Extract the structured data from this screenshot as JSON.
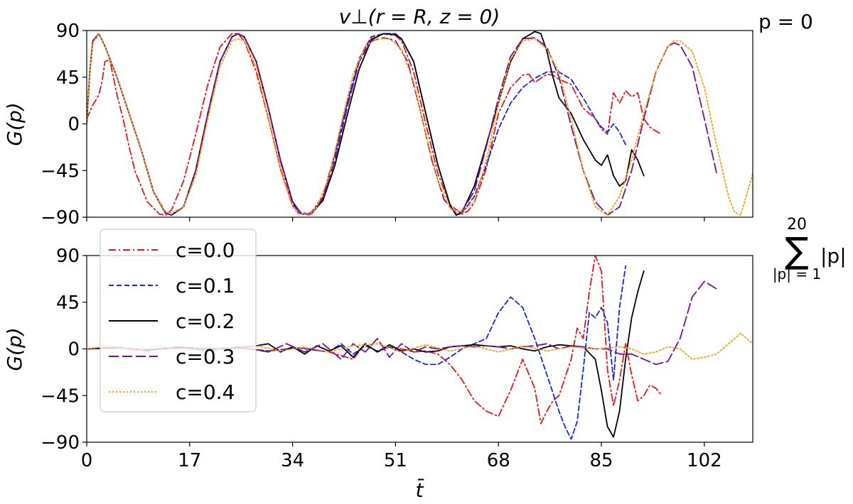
{
  "title": "v⊥(r = R, z = 0)",
  "chart_data": [
    {
      "type": "line",
      "panel": "top",
      "side_label": "p = 0",
      "ylabel": "G(p)",
      "xlabel": "",
      "xlim": [
        0,
        110
      ],
      "ylim": [
        -90,
        90
      ],
      "xticks": [
        0,
        17,
        34,
        51,
        68,
        85,
        102
      ],
      "yticks": [
        -90,
        -45,
        0,
        45,
        90
      ],
      "ytick_labels": [
        "−90",
        "−45",
        "0",
        "45",
        "90"
      ],
      "series": [
        {
          "name": "c=0.0",
          "color": "#e8161b",
          "dash": "dashdot",
          "x": [
            0,
            1,
            2,
            2.5,
            3,
            3.8,
            5,
            6,
            7,
            8,
            10,
            12,
            13,
            14,
            16,
            18,
            20,
            22,
            24,
            25,
            26,
            28,
            30,
            32,
            34,
            35.5,
            37,
            39,
            41,
            43,
            45,
            47,
            49,
            51,
            52,
            54,
            56,
            58,
            60,
            62,
            63,
            64,
            66,
            68,
            70,
            72,
            73,
            74,
            76,
            77,
            78,
            80,
            82,
            84,
            85,
            86,
            87,
            88,
            89,
            90,
            91,
            92,
            93,
            94,
            95
          ],
          "y": [
            5,
            18,
            28,
            40,
            60,
            62,
            28,
            5,
            -22,
            -46,
            -75,
            -87,
            -88,
            -83,
            -55,
            -10,
            38,
            74,
            87,
            87,
            80,
            50,
            5,
            -43,
            -79,
            -86,
            -86,
            -70,
            -28,
            20,
            60,
            82,
            87,
            85,
            80,
            50,
            0,
            -48,
            -78,
            -87,
            -84,
            -76,
            -43,
            10,
            35,
            47,
            48,
            40,
            48,
            47,
            43,
            38,
            15,
            5,
            -5,
            -10,
            30,
            20,
            32,
            26,
            30,
            5,
            -3,
            -7,
            -10
          ]
        },
        {
          "name": "c=0.1",
          "color": "#1128e6",
          "dash": "dashed",
          "x": [
            0,
            0.5,
            1,
            2,
            3,
            5,
            7,
            9,
            11,
            13,
            14,
            16,
            18,
            20,
            22,
            24,
            25,
            26,
            28,
            30,
            32,
            34,
            35,
            37,
            39,
            41,
            43,
            45,
            47,
            49,
            51,
            52,
            54,
            56,
            58,
            60,
            61,
            62,
            64,
            66,
            68,
            70,
            72,
            74,
            76,
            78,
            80,
            82,
            84,
            85,
            86,
            87,
            88,
            89
          ],
          "y": [
            0,
            50,
            78,
            87,
            75,
            45,
            10,
            -25,
            -65,
            -85,
            -88,
            -80,
            -45,
            10,
            60,
            84,
            87,
            84,
            60,
            15,
            -36,
            -76,
            -86,
            -88,
            -72,
            -30,
            20,
            63,
            84,
            87,
            87,
            82,
            60,
            10,
            -40,
            -78,
            -88,
            -86,
            -70,
            -40,
            -5,
            20,
            35,
            44,
            50,
            50,
            43,
            25,
            5,
            -3,
            -8,
            0,
            -8,
            -20
          ]
        },
        {
          "name": "c=0.2",
          "color": "#000000",
          "dash": "solid",
          "x": [
            0,
            0.5,
            1,
            2,
            3,
            5,
            7,
            9,
            11,
            13,
            14,
            16,
            18,
            20,
            22,
            24,
            25,
            26,
            28,
            30,
            32,
            34,
            35.5,
            37,
            39,
            41,
            43,
            45,
            47,
            49,
            51,
            52,
            54,
            56,
            58,
            60,
            61,
            62,
            64,
            66,
            68,
            70,
            72,
            74,
            75,
            76,
            77,
            78,
            80,
            82,
            84,
            85,
            86,
            87,
            88,
            89,
            90,
            91,
            92
          ],
          "y": [
            0,
            50,
            80,
            87,
            75,
            45,
            10,
            -25,
            -65,
            -86,
            -88,
            -80,
            -45,
            10,
            60,
            84,
            87,
            84,
            60,
            15,
            -35,
            -75,
            -87,
            -87,
            -74,
            -40,
            8,
            53,
            81,
            87,
            86,
            82,
            60,
            10,
            -40,
            -78,
            -88,
            -85,
            -60,
            -20,
            20,
            60,
            82,
            89,
            87,
            70,
            45,
            25,
            10,
            -15,
            -35,
            -40,
            -30,
            -50,
            -60,
            -55,
            -25,
            -35,
            -50
          ]
        },
        {
          "name": "c=0.3",
          "color": "#7b0f94",
          "dash": "longdash",
          "x": [
            0,
            0.5,
            1,
            2,
            3,
            5,
            7,
            9,
            11,
            13,
            14,
            16,
            18,
            20,
            22,
            24,
            25,
            26,
            28,
            30,
            32,
            34,
            35.5,
            37,
            39,
            41,
            43,
            45,
            47,
            49,
            50,
            51,
            53,
            55,
            57,
            59,
            61,
            62,
            64,
            66,
            68,
            70,
            72,
            74,
            76,
            78,
            80,
            82,
            84,
            86,
            88,
            90,
            92,
            94,
            96,
            97,
            98,
            100,
            102,
            104
          ],
          "y": [
            0,
            50,
            80,
            87,
            75,
            45,
            10,
            -25,
            -65,
            -86,
            -88,
            -80,
            -45,
            10,
            60,
            84,
            87,
            84,
            60,
            15,
            -35,
            -75,
            -87,
            -87,
            -72,
            -35,
            15,
            60,
            80,
            83,
            82,
            80,
            60,
            15,
            -35,
            -73,
            -86,
            -84,
            -65,
            -22,
            25,
            65,
            82,
            83,
            74,
            45,
            -2,
            -45,
            -75,
            -88,
            -80,
            -45,
            5,
            50,
            75,
            78,
            76,
            55,
            5,
            -47
          ]
        },
        {
          "name": "c=0.4",
          "color": "#f5a205",
          "dash": "dotted",
          "x": [
            0,
            0.5,
            1,
            2,
            3,
            5,
            7,
            9,
            11,
            13,
            14,
            16,
            18,
            20,
            22,
            24,
            25,
            26,
            28,
            30,
            32,
            34,
            35,
            37,
            38,
            40,
            42,
            44,
            46,
            48,
            50,
            52,
            54,
            56,
            58,
            60,
            62,
            64,
            66,
            68,
            70,
            72,
            74,
            76,
            78,
            80,
            82,
            84,
            86,
            88,
            90,
            92,
            94,
            96,
            97,
            98,
            100,
            102,
            104,
            106,
            107,
            108,
            110
          ],
          "y": [
            0,
            50,
            78,
            87,
            75,
            45,
            10,
            -25,
            -65,
            -85,
            -86,
            -80,
            -50,
            5,
            55,
            80,
            82,
            80,
            55,
            5,
            -45,
            -80,
            -87,
            -87,
            -80,
            -52,
            0,
            48,
            75,
            82,
            82,
            72,
            40,
            -10,
            -55,
            -82,
            -85,
            -75,
            -35,
            20,
            62,
            80,
            82,
            72,
            50,
            5,
            -45,
            -80,
            -88,
            -70,
            -35,
            10,
            50,
            75,
            80,
            80,
            70,
            35,
            -20,
            -70,
            -85,
            -88,
            -48
          ]
        }
      ]
    },
    {
      "type": "line",
      "panel": "bottom",
      "side_label_sum_top": "20",
      "side_label_sum_symbol": "∑",
      "side_label_sum_bottom": "|p| = 1",
      "side_label_sum_term": "|p|",
      "ylabel": "G(p)",
      "xlabel": "t̄",
      "xlim": [
        0,
        110
      ],
      "ylim": [
        -90,
        90
      ],
      "xticks": [
        0,
        17,
        34,
        51,
        68,
        85,
        102
      ],
      "yticks": [
        -90,
        -45,
        0,
        45,
        90
      ],
      "ytick_labels": [
        "−90",
        "−45",
        "0",
        "45",
        "90"
      ],
      "series": [
        {
          "name": "c=0.0",
          "color": "#e8161b",
          "dash": "dashdot",
          "x": [
            0,
            5,
            10,
            15,
            20,
            25,
            30,
            35,
            40,
            44,
            46,
            48,
            50,
            52,
            54,
            56,
            58,
            60,
            62,
            64,
            66,
            68,
            70,
            72,
            74,
            75,
            76,
            77,
            78,
            80,
            81,
            82,
            83,
            84,
            85,
            86,
            87,
            88,
            89,
            90,
            91,
            92,
            93,
            94,
            95
          ],
          "y": [
            0,
            1,
            -1,
            2,
            0,
            1,
            -2,
            1,
            -3,
            -10,
            5,
            -3,
            2,
            0,
            -3,
            -2,
            -5,
            -15,
            -30,
            -50,
            -60,
            -65,
            -40,
            -10,
            -38,
            -72,
            -60,
            -50,
            -45,
            -10,
            20,
            10,
            55,
            90,
            75,
            -20,
            -55,
            -30,
            5,
            -25,
            -50,
            -45,
            -35,
            -38,
            -45
          ]
        },
        {
          "name": "c=0.1",
          "color": "#1128e6",
          "dash": "dashed",
          "x": [
            0,
            5,
            10,
            15,
            20,
            25,
            30,
            35,
            40,
            42,
            44,
            46,
            48,
            50,
            52,
            54,
            56,
            58,
            60,
            62,
            64,
            66,
            68,
            70,
            72,
            74,
            76,
            78,
            79,
            80,
            81,
            82,
            83,
            84,
            85,
            86,
            87,
            88,
            89
          ],
          "y": [
            0,
            1,
            -1,
            2,
            0,
            1,
            -2,
            1,
            -3,
            5,
            -5,
            3,
            -2,
            2,
            -3,
            -10,
            -15,
            -15,
            -8,
            0,
            5,
            10,
            35,
            50,
            40,
            10,
            -25,
            -60,
            -75,
            -87,
            -70,
            -20,
            35,
            30,
            40,
            25,
            -30,
            40,
            80
          ]
        },
        {
          "name": "c=0.2",
          "color": "#000000",
          "dash": "solid",
          "x": [
            0,
            5,
            10,
            15,
            20,
            25,
            28,
            30,
            32,
            34,
            36,
            38,
            40,
            42,
            44,
            46,
            48,
            50,
            52,
            54,
            56,
            58,
            60,
            62,
            64,
            66,
            68,
            70,
            72,
            74,
            76,
            78,
            80,
            82,
            84,
            85,
            86,
            87,
            88,
            89,
            90,
            91,
            92
          ],
          "y": [
            0,
            1,
            -1,
            1,
            0,
            1,
            3,
            5,
            -3,
            2,
            -5,
            3,
            -2,
            3,
            -8,
            5,
            -3,
            4,
            -2,
            0,
            -3,
            -2,
            2,
            3,
            4,
            3,
            2,
            3,
            0,
            -2,
            2,
            4,
            3,
            2,
            -10,
            -40,
            -75,
            -85,
            -60,
            -10,
            30,
            55,
            75
          ]
        },
        {
          "name": "c=0.3",
          "color": "#7b0f94",
          "dash": "longdash",
          "x": [
            0,
            5,
            10,
            15,
            20,
            25,
            30,
            33,
            36,
            39,
            42,
            44,
            46,
            48,
            50,
            52,
            54,
            56,
            58,
            60,
            62,
            64,
            66,
            68,
            70,
            72,
            74,
            76,
            78,
            80,
            82,
            84,
            86,
            88,
            90,
            92,
            94,
            96,
            98,
            100,
            102,
            104
          ],
          "y": [
            0,
            2,
            -2,
            2,
            -2,
            2,
            -3,
            5,
            -3,
            5,
            -10,
            5,
            -3,
            10,
            -8,
            5,
            -3,
            2,
            0,
            2,
            3,
            2,
            3,
            2,
            0,
            2,
            3,
            5,
            0,
            3,
            2,
            0,
            0,
            -5,
            -5,
            -10,
            -15,
            -12,
            10,
            50,
            65,
            58
          ]
        },
        {
          "name": "c=0.4",
          "color": "#f5a205",
          "dash": "dotted",
          "x": [
            0,
            4,
            8,
            12,
            16,
            20,
            24,
            28,
            32,
            36,
            40,
            44,
            48,
            52,
            56,
            60,
            64,
            68,
            72,
            76,
            80,
            84,
            88,
            90,
            92,
            94,
            96,
            98,
            100,
            102,
            104,
            106,
            108,
            110
          ],
          "y": [
            0,
            3,
            -2,
            3,
            -2,
            2,
            -2,
            3,
            -2,
            2,
            -3,
            3,
            5,
            -3,
            4,
            -2,
            3,
            -3,
            3,
            -2,
            2,
            0,
            2,
            0,
            -5,
            -3,
            2,
            0,
            -10,
            -8,
            -5,
            5,
            15,
            5
          ]
        }
      ]
    }
  ]
}
